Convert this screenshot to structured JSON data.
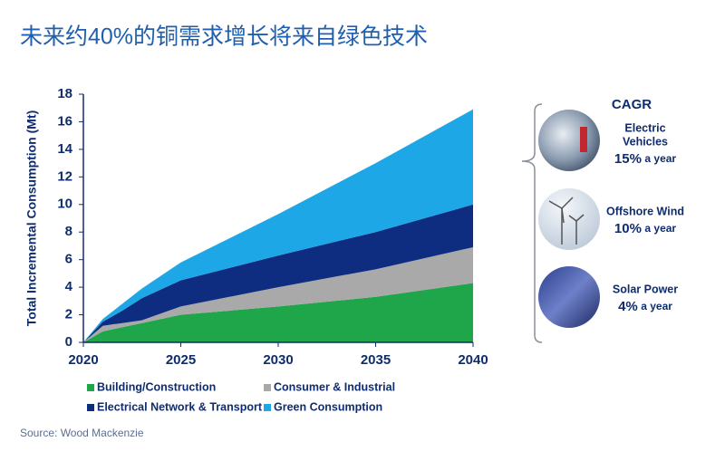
{
  "chart_data": {
    "type": "stacked_area",
    "title": "未来约40%的铜需求增长将来自绿色技术",
    "y_label": "Total Incremental Consumption (Mt)",
    "source": "Source: Wood Mackenzie",
    "x": [
      2020,
      2021,
      2022,
      2023,
      2025,
      2030,
      2035,
      2040
    ],
    "xlim": [
      2020,
      2040
    ],
    "xticks": [
      2020,
      2025,
      2030,
      2035,
      2040
    ],
    "ylim": [
      0,
      18
    ],
    "yticks": [
      0,
      2,
      4,
      6,
      8,
      10,
      12,
      14,
      16,
      18
    ],
    "series": [
      {
        "name": "Building/Construction",
        "color": "#1fa64a",
        "values": [
          0,
          0.8,
          1.1,
          1.4,
          2.0,
          2.6,
          3.3,
          4.3
        ]
      },
      {
        "name": "Consumer & Industrial",
        "color": "#a9a9a9",
        "values": [
          0,
          0.4,
          0.3,
          0.2,
          0.6,
          1.4,
          2.0,
          2.6
        ]
      },
      {
        "name": "Electrical Network & Transport",
        "color": "#0f2d80",
        "values": [
          0,
          0.3,
          0.9,
          1.6,
          1.9,
          2.3,
          2.7,
          3.1
        ]
      },
      {
        "name": "Green Consumption",
        "color": "#1ea7e6",
        "values": [
          0,
          0.2,
          0.5,
          0.7,
          1.3,
          3.0,
          5.0,
          6.9
        ]
      }
    ],
    "cagr_title": "CAGR",
    "cagr": [
      {
        "label": [
          "Electric",
          "Vehicles"
        ],
        "rate": "15%",
        "unit": "a year"
      },
      {
        "label": [
          "Offshore Wind"
        ],
        "rate": "10%",
        "unit": "a year"
      },
      {
        "label": [
          "Solar Power"
        ],
        "rate": "4%",
        "unit": "a year"
      }
    ]
  }
}
